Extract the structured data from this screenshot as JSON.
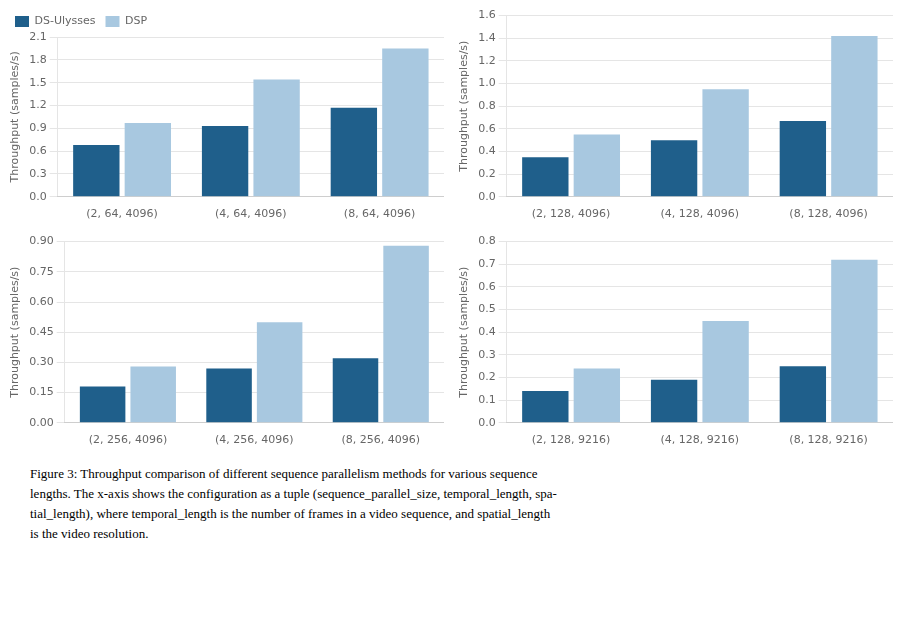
{
  "chart_data": [
    {
      "type": "bar",
      "ylabel": "Throughput (samples/s)",
      "categories": [
        "(2, 64, 4096)",
        "(4, 64, 4096)",
        "(8, 64, 4096)"
      ],
      "series": [
        {
          "name": "DS-Ulysses",
          "color": "#1f5f8b",
          "values": [
            0.68,
            0.93,
            1.17
          ]
        },
        {
          "name": "DSP",
          "color": "#a8c8e0",
          "values": [
            0.97,
            1.54,
            1.95
          ]
        }
      ],
      "ylim": [
        0,
        2.1
      ],
      "yticks": [
        {
          "value": 0,
          "label": "0.0"
        },
        0.3,
        0.6,
        0.9,
        1.2,
        1.5,
        1.8,
        2.1
      ],
      "grid": true,
      "legend": "upper left"
    },
    {
      "type": "bar",
      "ylabel": "Throughput (samples/s)",
      "categories": [
        "(2, 128, 4096)",
        "(4, 128, 4096)",
        "(8, 128, 4096)"
      ],
      "series": [
        {
          "name": "DS-Ulysses",
          "color": "#1f5f8b",
          "values": [
            0.35,
            0.5,
            0.67
          ]
        },
        {
          "name": "DSP",
          "color": "#a8c8e0",
          "values": [
            0.55,
            0.95,
            1.42
          ]
        }
      ],
      "ylim": [
        0,
        1.6
      ],
      "yticks": [
        {
          "value": 0,
          "label": "0.0"
        },
        0.2,
        0.4,
        0.6,
        0.8,
        {
          "value": 1.0,
          "label": "1.0"
        },
        1.2,
        1.4,
        1.6
      ],
      "grid": true
    },
    {
      "type": "bar",
      "ylabel": "Throughput (samples/s)",
      "categories": [
        "(2, 256, 4096)",
        "(4, 256, 4096)",
        "(8, 256, 4096)"
      ],
      "series": [
        {
          "name": "DS-Ulysses",
          "color": "#1f5f8b",
          "values": [
            0.18,
            0.27,
            0.32
          ]
        },
        {
          "name": "DSP",
          "color": "#a8c8e0",
          "values": [
            0.28,
            0.5,
            0.88
          ]
        }
      ],
      "ylim": [
        0,
        0.9
      ],
      "yticks": [
        {
          "value": 0,
          "label": "0.00"
        },
        0.15,
        {
          "value": 0.3,
          "label": "0.30"
        },
        0.45,
        {
          "value": 0.6,
          "label": "0.60"
        },
        0.75,
        {
          "value": 0.9,
          "label": "0.90"
        }
      ],
      "grid": true
    },
    {
      "type": "bar",
      "ylabel": "Throughput (samples/s)",
      "categories": [
        "(2, 128, 9216)",
        "(4, 128, 9216)",
        "(8, 128, 9216)"
      ],
      "series": [
        {
          "name": "DS-Ulysses",
          "color": "#1f5f8b",
          "values": [
            0.14,
            0.19,
            0.25
          ]
        },
        {
          "name": "DSP",
          "color": "#a8c8e0",
          "values": [
            0.24,
            0.45,
            0.72
          ]
        }
      ],
      "ylim": [
        0,
        0.8
      ],
      "yticks": [
        {
          "value": 0,
          "label": "0.0"
        },
        0.1,
        0.2,
        0.3,
        0.4,
        0.5,
        0.6,
        0.7,
        0.8
      ],
      "grid": true
    }
  ],
  "annotations": [
    "Figure 3: Throughput comparison of different sequence parallelism methods for various sequence",
    "lengths. The x-axis shows the configuration as a tuple (sequence_parallel_size, temporal_length, spa-",
    "tial_length), where temporal_length is the number of frames in a video sequence, and spatial_length",
    "is the video resolution."
  ]
}
